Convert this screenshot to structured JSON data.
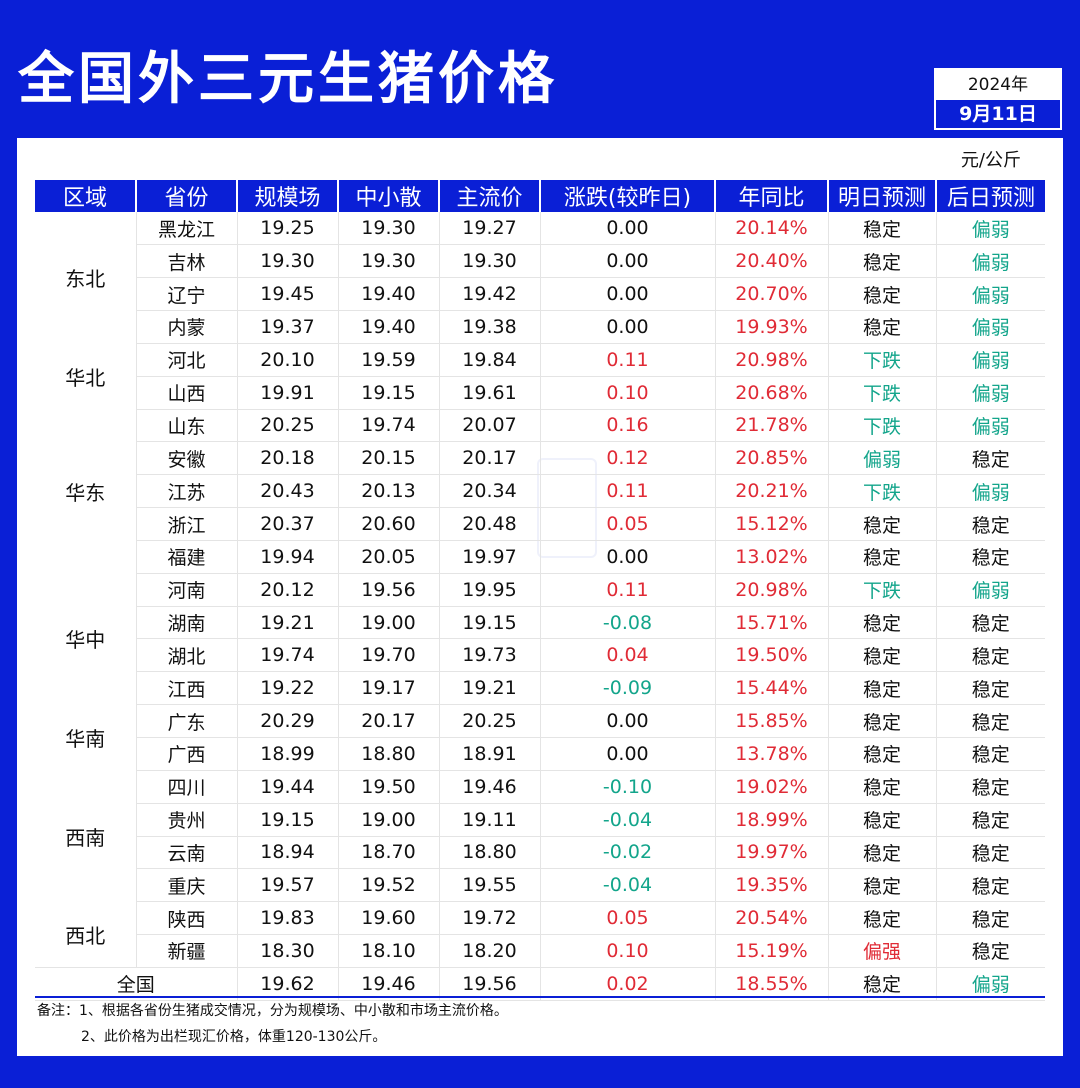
{
  "title": "全国外三元生猪价格",
  "date": {
    "year": "2024年",
    "day": "9月11日"
  },
  "unit": "元/公斤",
  "headers": [
    "区域",
    "省份",
    "规模场",
    "中小散",
    "主流价",
    "涨跌(较昨日)",
    "年同比",
    "明日预测",
    "后日预测"
  ],
  "colors": {
    "brand_blue": "#0a1fd6",
    "up_red": "#e02b36",
    "down_green": "#13a58b"
  },
  "regions": [
    {
      "name": "东北",
      "rows": 4
    },
    {
      "name": "华北",
      "rows": 2
    },
    {
      "name": "华东",
      "rows": 5
    },
    {
      "name": "华中",
      "rows": 4
    },
    {
      "name": "华南",
      "rows": 2
    },
    {
      "name": "西南",
      "rows": 4
    },
    {
      "name": "西北",
      "rows": 2
    }
  ],
  "rows": [
    [
      "黑龙江",
      "19.25",
      "19.30",
      "19.27",
      "0.00",
      "20.14%",
      "稳定",
      "偏弱"
    ],
    [
      "吉林",
      "19.30",
      "19.30",
      "19.30",
      "0.00",
      "20.40%",
      "稳定",
      "偏弱"
    ],
    [
      "辽宁",
      "19.45",
      "19.40",
      "19.42",
      "0.00",
      "20.70%",
      "稳定",
      "偏弱"
    ],
    [
      "内蒙",
      "19.37",
      "19.40",
      "19.38",
      "0.00",
      "19.93%",
      "稳定",
      "偏弱"
    ],
    [
      "河北",
      "20.10",
      "19.59",
      "19.84",
      "0.11",
      "20.98%",
      "下跌",
      "偏弱"
    ],
    [
      "山西",
      "19.91",
      "19.15",
      "19.61",
      "0.10",
      "20.68%",
      "下跌",
      "偏弱"
    ],
    [
      "山东",
      "20.25",
      "19.74",
      "20.07",
      "0.16",
      "21.78%",
      "下跌",
      "偏弱"
    ],
    [
      "安徽",
      "20.18",
      "20.15",
      "20.17",
      "0.12",
      "20.85%",
      "偏弱",
      "稳定"
    ],
    [
      "江苏",
      "20.43",
      "20.13",
      "20.34",
      "0.11",
      "20.21%",
      "下跌",
      "偏弱"
    ],
    [
      "浙江",
      "20.37",
      "20.60",
      "20.48",
      "0.05",
      "15.12%",
      "稳定",
      "稳定"
    ],
    [
      "福建",
      "19.94",
      "20.05",
      "19.97",
      "0.00",
      "13.02%",
      "稳定",
      "稳定"
    ],
    [
      "河南",
      "20.12",
      "19.56",
      "19.95",
      "0.11",
      "20.98%",
      "下跌",
      "偏弱"
    ],
    [
      "湖南",
      "19.21",
      "19.00",
      "19.15",
      "-0.08",
      "15.71%",
      "稳定",
      "稳定"
    ],
    [
      "湖北",
      "19.74",
      "19.70",
      "19.73",
      "0.04",
      "19.50%",
      "稳定",
      "稳定"
    ],
    [
      "江西",
      "19.22",
      "19.17",
      "19.21",
      "-0.09",
      "15.44%",
      "稳定",
      "稳定"
    ],
    [
      "广东",
      "20.29",
      "20.17",
      "20.25",
      "0.00",
      "15.85%",
      "稳定",
      "稳定"
    ],
    [
      "广西",
      "18.99",
      "18.80",
      "18.91",
      "0.00",
      "13.78%",
      "稳定",
      "稳定"
    ],
    [
      "四川",
      "19.44",
      "19.50",
      "19.46",
      "-0.10",
      "19.02%",
      "稳定",
      "稳定"
    ],
    [
      "贵州",
      "19.15",
      "19.00",
      "19.11",
      "-0.04",
      "18.99%",
      "稳定",
      "稳定"
    ],
    [
      "云南",
      "18.94",
      "18.70",
      "18.80",
      "-0.02",
      "19.97%",
      "稳定",
      "稳定"
    ],
    [
      "重庆",
      "19.57",
      "19.52",
      "19.55",
      "-0.04",
      "19.35%",
      "稳定",
      "稳定"
    ],
    [
      "陕西",
      "19.83",
      "19.60",
      "19.72",
      "0.05",
      "20.54%",
      "稳定",
      "稳定"
    ],
    [
      "新疆",
      "18.30",
      "18.10",
      "18.20",
      "0.10",
      "15.19%",
      "偏强",
      "稳定"
    ]
  ],
  "national": [
    "全国",
    "19.62",
    "19.46",
    "19.56",
    "0.02",
    "18.55%",
    "稳定",
    "偏弱"
  ],
  "notes": [
    "备注：1、根据各省份生猪成交情况，分为规模场、中小散和市场主流价格。",
    "2、此价格为出栏现汇价格，体重120-130公斤。"
  ]
}
